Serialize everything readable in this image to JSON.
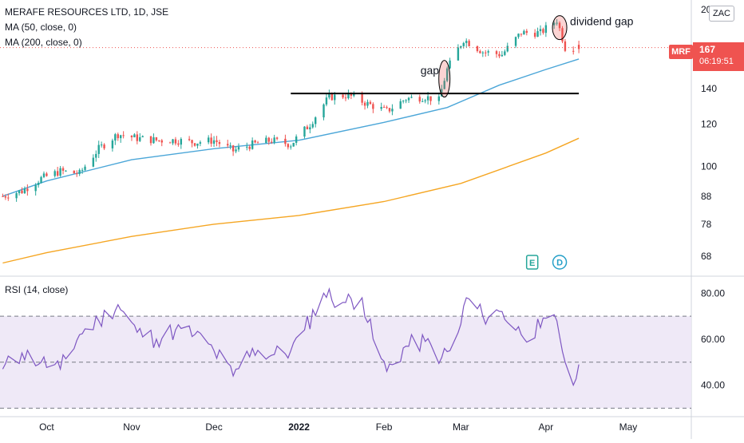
{
  "legend": {
    "title": "MERAFE RESOURCES LTD, 1D, JSE",
    "ma50": "MA (50, close, 0)",
    "ma200": "MA (200, close, 0)",
    "rsi": "RSI (14, close)"
  },
  "price_axis": {
    "ticks": [
      "68",
      "78",
      "88",
      "100",
      "120",
      "140",
      "20"
    ],
    "currency": "ZAC"
  },
  "last_price": {
    "symbol": "MRF",
    "value": "167",
    "countdown": "06:19:51"
  },
  "rsi_axis": {
    "ticks": [
      "80.00",
      "60.00",
      "40.00"
    ]
  },
  "time_axis": {
    "labels": [
      "Oct",
      "Nov",
      "Dec",
      "2022",
      "Feb",
      "Mar",
      "Apr",
      "May"
    ]
  },
  "annotations": {
    "gap": "gap",
    "dividend_gap": "dividend gap",
    "earnings_marker": "E",
    "dividend_marker": "D"
  },
  "colors": {
    "up": "#26a69a",
    "down": "#ef5350",
    "ma50": "#4ba6d8",
    "ma200": "#f5a623",
    "rsi": "#7e57c2",
    "rsi_band": "#ede7f6",
    "price_line": "#ef5350"
  },
  "chart_data": [
    {
      "type": "candlestick",
      "title": "MERAFE RESOURCES LTD, 1D, JSE",
      "y_scale": "log",
      "ylim": [
        63,
        205
      ],
      "x_range": [
        "2021-09-14",
        "2022-05-24"
      ],
      "x": [
        "2021-09-15",
        "2021-09-22",
        "2021-09-29",
        "2021-10-06",
        "2021-10-13",
        "2021-10-20",
        "2021-10-27",
        "2021-11-03",
        "2021-11-10",
        "2021-11-17",
        "2021-11-24",
        "2021-12-01",
        "2021-12-08",
        "2021-12-15",
        "2021-12-22",
        "2021-12-29",
        "2022-01-05",
        "2022-01-12",
        "2022-01-19",
        "2022-01-26",
        "2022-02-02",
        "2022-02-09",
        "2022-02-16",
        "2022-02-21",
        "2022-02-24",
        "2022-03-02",
        "2022-03-09",
        "2022-03-16",
        "2022-03-23",
        "2022-03-30",
        "2022-04-05",
        "2022-04-08",
        "2022-04-12"
      ],
      "close": [
        88,
        90,
        95,
        98,
        97,
        108,
        115,
        113,
        112,
        112,
        111,
        112,
        107,
        110,
        112,
        110,
        120,
        135,
        136,
        131,
        127,
        134,
        135,
        133,
        152,
        173,
        164,
        162,
        178,
        178,
        188,
        167,
        167
      ],
      "series": [
        {
          "name": "MA (50, close, 0)",
          "x": [
            "2021-09-15",
            "2021-10-01",
            "2021-11-01",
            "2021-12-01",
            "2022-01-01",
            "2022-02-01",
            "2022-02-24",
            "2022-03-15",
            "2022-04-01",
            "2022-04-13"
          ],
          "values": [
            88,
            94,
            103,
            108,
            112,
            121,
            129,
            142,
            152,
            159
          ]
        },
        {
          "name": "MA (200, close, 0)",
          "x": [
            "2021-09-15",
            "2021-10-01",
            "2021-11-01",
            "2021-12-01",
            "2022-01-01",
            "2022-02-01",
            "2022-03-01",
            "2022-04-01",
            "2022-04-13"
          ],
          "values": [
            66,
            69,
            74,
            78,
            81,
            86,
            93,
            106,
            113
          ]
        }
      ],
      "horizontal_line": 137,
      "annotations": [
        "gap",
        "dividend gap"
      ],
      "last_value": 167
    },
    {
      "type": "line",
      "title": "RSI (14, close)",
      "ylim": [
        27,
        86
      ],
      "x_range": [
        "2021-09-14",
        "2022-05-24"
      ],
      "levels": [
        70,
        50,
        30
      ],
      "x": [
        "2021-09-15",
        "2021-09-22",
        "2021-09-29",
        "2021-10-06",
        "2021-10-13",
        "2021-10-20",
        "2021-10-27",
        "2021-11-03",
        "2021-11-10",
        "2021-11-17",
        "2021-11-24",
        "2021-12-01",
        "2021-12-08",
        "2021-12-15",
        "2021-12-22",
        "2021-12-29",
        "2022-01-03",
        "2022-01-10",
        "2022-01-17",
        "2022-01-24",
        "2022-01-28",
        "2022-02-02",
        "2022-02-09",
        "2022-02-16",
        "2022-02-22",
        "2022-02-27",
        "2022-03-03",
        "2022-03-09",
        "2022-03-16",
        "2022-03-23",
        "2022-03-30",
        "2022-04-05",
        "2022-04-08",
        "2022-04-11",
        "2022-04-13"
      ],
      "values": [
        47,
        54,
        50,
        47,
        62,
        68,
        75,
        63,
        60,
        64,
        62,
        55,
        44,
        56,
        53,
        55,
        64,
        80,
        76,
        78,
        60,
        46,
        57,
        59,
        52,
        56,
        78,
        70,
        72,
        62,
        65,
        68,
        50,
        40,
        49
      ]
    }
  ]
}
